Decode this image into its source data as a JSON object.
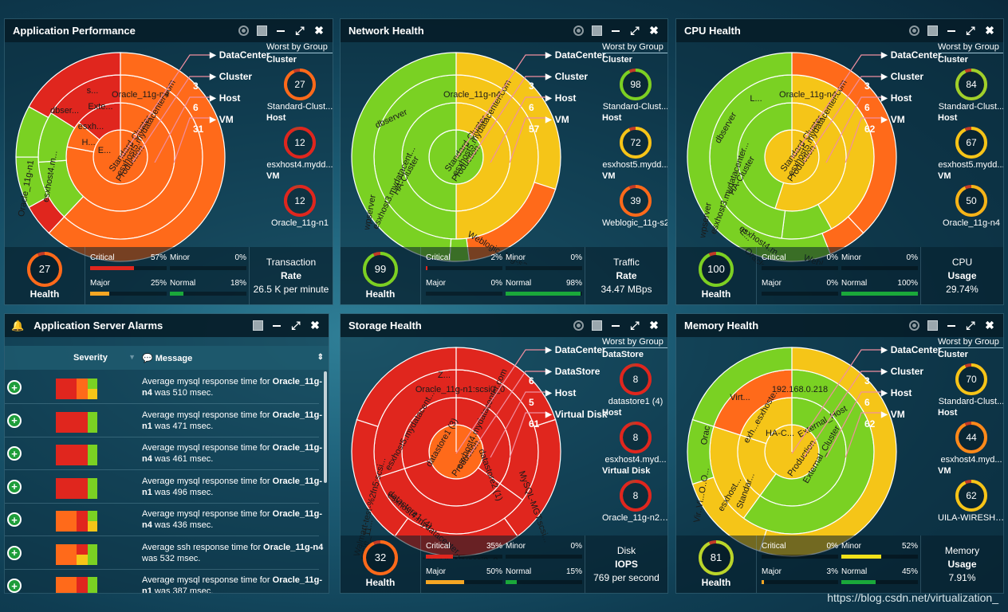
{
  "panels": {
    "app": {
      "title": "Application Performance",
      "levels": [
        "DataCenter",
        "Cluster",
        "Host",
        "VM"
      ],
      "counts": [
        "3",
        "6",
        "31"
      ],
      "worst_header": "Worst by Group",
      "worst": [
        {
          "group": "Cluster",
          "value": "27",
          "name": "Standard-Clust...",
          "color": "#ff6a1a"
        },
        {
          "group": "Host",
          "value": "12",
          "name": "esxhost4.mydd...",
          "color": "#e0261e"
        },
        {
          "group": "VM",
          "value": "12",
          "name": "Oracle_11g-n1",
          "color": "#e0261e"
        }
      ],
      "sun_labels": {
        "root": "Production",
        "ring1": "Standard-Cluster",
        "ring2a": "esxhost5.mydatacenter.com",
        "ring2b": "esxhost4.m...",
        "ring3a": "Oracle_11g-n4",
        "ring3b": "Oracle_11g-n1",
        "small1": "dbser...",
        "small2": "Exte...",
        "small3": "esxh...",
        "small4": "s...",
        "small5": "H...",
        "small6": "E..."
      },
      "health": {
        "value": "27",
        "label": "Health",
        "color": "#ff6a1a"
      },
      "severity": [
        {
          "label": "Critical",
          "pct": "57%",
          "fill": 0.57,
          "color": "#e0261e"
        },
        {
          "label": "Minor",
          "pct": "0%",
          "fill": 0,
          "color": "#f2e21a"
        },
        {
          "label": "Major",
          "pct": "25%",
          "fill": 0.25,
          "color": "#f5a623"
        },
        {
          "label": "Normal",
          "pct": "18%",
          "fill": 0.18,
          "color": "#1aa83a"
        }
      ],
      "metric": {
        "line1": "Transaction",
        "line2": "Rate",
        "line3": "26.5 K per minute"
      }
    },
    "net": {
      "title": "Network Health",
      "levels": [
        "DataCenter",
        "Cluster",
        "Host",
        "VM"
      ],
      "counts": [
        "3",
        "6",
        "57"
      ],
      "worst_header": "Worst by Group",
      "worst": [
        {
          "group": "Cluster",
          "value": "98",
          "name": "Standard-Clust...",
          "color": "#7ad123"
        },
        {
          "group": "Host",
          "value": "72",
          "name": "esxhost5.mydd...",
          "color": "#f5c518"
        },
        {
          "group": "VM",
          "value": "39",
          "name": "Weblogic_11g-s2",
          "color": "#ff6a1a"
        }
      ],
      "sun_labels": {
        "root": "Production",
        "ring1": "Standard-Cluster",
        "ring1b": "HA-Cluster",
        "ring2a": "esxhost5.mydatacenter.com",
        "ring2b": "esxhost3.mydatacent...",
        "ring3a": "Oracle_11g-n4",
        "ring3b": "dbserver",
        "ring3c": "wpserver",
        "ring3d": "Weblogic_11g-s2"
      },
      "health": {
        "value": "99",
        "label": "Health",
        "color": "#7ad123"
      },
      "severity": [
        {
          "label": "Critical",
          "pct": "2%",
          "fill": 0.02,
          "color": "#e0261e"
        },
        {
          "label": "Minor",
          "pct": "0%",
          "fill": 0,
          "color": "#f2e21a"
        },
        {
          "label": "Major",
          "pct": "0%",
          "fill": 0,
          "color": "#f5a623"
        },
        {
          "label": "Normal",
          "pct": "98%",
          "fill": 0.98,
          "color": "#1aa83a"
        }
      ],
      "metric": {
        "line1": "Traffic",
        "line2": "Rate",
        "line3": "34.47 MBps"
      }
    },
    "cpu": {
      "title": "CPU Health",
      "levels": [
        "DataCenter",
        "Cluster",
        "Host",
        "VM"
      ],
      "counts": [
        "3",
        "6",
        "62"
      ],
      "worst_header": "Worst by Group",
      "worst": [
        {
          "group": "Cluster",
          "value": "84",
          "name": "Standard-Clust...",
          "color": "#9fd12a"
        },
        {
          "group": "Host",
          "value": "67",
          "name": "esxhost5.mydd...",
          "color": "#f5c518"
        },
        {
          "group": "VM",
          "value": "50",
          "name": "Oracle_11g-n4",
          "color": "#f5b518"
        }
      ],
      "sun_labels": {
        "root": "Production",
        "ring1": "Standard-Cluster",
        "ring1b": "HA-Cluster",
        "ring2a": "esxhost5.mydatacenter.com",
        "ring2b": "esxhost3.mydatacenter...",
        "ring2c": "esxhost4.m...",
        "ring3a": "Oracle_11g-n4",
        "ring3b": "dbserver",
        "ring3c": "wpserver",
        "ring3d": "Webl...",
        "ring3e": "Oracle...",
        "ring3f": "E...",
        "ring3g": "L..."
      },
      "health": {
        "value": "100",
        "label": "Health",
        "color": "#7ad123"
      },
      "severity": [
        {
          "label": "Critical",
          "pct": "0%",
          "fill": 0,
          "color": "#e0261e"
        },
        {
          "label": "Minor",
          "pct": "0%",
          "fill": 0,
          "color": "#f2e21a"
        },
        {
          "label": "Major",
          "pct": "0%",
          "fill": 0,
          "color": "#f5a623"
        },
        {
          "label": "Normal",
          "pct": "100%",
          "fill": 1,
          "color": "#1aa83a"
        }
      ],
      "metric": {
        "line1": "CPU",
        "line2": "Usage",
        "line3": "29.74%"
      }
    },
    "storage": {
      "title": "Storage Health",
      "levels": [
        "DataCenter",
        "DataStore",
        "Host",
        "Virtual Disk"
      ],
      "counts": [
        "6",
        "5",
        "61"
      ],
      "worst_header": "Worst by Group",
      "worst": [
        {
          "group": "DataStore",
          "value": "8",
          "name": "datastore1 (4)",
          "color": "#e0261e"
        },
        {
          "group": "Host",
          "value": "8",
          "name": "esxhost4.myd...",
          "color": "#e0261e"
        },
        {
          "group": "Virtual Disk",
          "value": "8",
          "name": "Oracle_11g-n2:...",
          "color": "#e0261e"
        }
      ],
      "sun_labels": {
        "root": "Production",
        "ring1a": "datastore1 (3)",
        "ring1b": "datastore1 (4)",
        "ring1c": "datastore2 (1)",
        "ring2a": "esxhost5.mydatacent...",
        "ring2b": "esxhost4.mydatacenter.com",
        "ring2c": "esxhost4.mydatacenter...",
        "ring3a": "Oracle_11g-n1:scsi0_0",
        "ring3b": "Walmart-test-%2fn5:scsi...",
        "ring3c": "MySQL-MGT:scsi...",
        "ring3d": "MySQL-N1:scsi0_0",
        "ring3e": "Oracle_11...",
        "ring3f": "Z..."
      },
      "health": {
        "value": "32",
        "label": "Health",
        "color": "#ff6a1a"
      },
      "severity": [
        {
          "label": "Critical",
          "pct": "35%",
          "fill": 0.35,
          "color": "#e0261e"
        },
        {
          "label": "Minor",
          "pct": "0%",
          "fill": 0,
          "color": "#f2e21a"
        },
        {
          "label": "Major",
          "pct": "50%",
          "fill": 0.5,
          "color": "#f5a623"
        },
        {
          "label": "Normal",
          "pct": "15%",
          "fill": 0.15,
          "color": "#1aa83a"
        }
      ],
      "metric": {
        "line1": "Disk",
        "line2": "IOPS",
        "line3": "769 per second"
      }
    },
    "mem": {
      "title": "Memory Health",
      "levels": [
        "DataCenter",
        "Cluster",
        "Host",
        "VM"
      ],
      "counts": [
        "3",
        "6",
        "62"
      ],
      "worst_header": "Worst by Group",
      "worst": [
        {
          "group": "Cluster",
          "value": "70",
          "name": "Standard-Clust...",
          "color": "#f5c518"
        },
        {
          "group": "Host",
          "value": "44",
          "name": "esxhost4.myd...",
          "color": "#ff8a1a"
        },
        {
          "group": "VM",
          "value": "62",
          "name": "UILA-WIRESHA...",
          "color": "#f5c518"
        }
      ],
      "sun_labels": {
        "root": "Production",
        "ring1a": "External_Cluster",
        "ring1b": "HA-C...",
        "ring1c": "Standar...",
        "ring2a": "External_Host",
        "ring2b": "exh...esxhoste...",
        "ring2c": "esxhost...",
        "ring3a": "192.168.0.218",
        "ring3b": "Virt...",
        "ring3c": "Orac",
        "ring3d": "Vir..Vi...O..O..."
      },
      "health": {
        "value": "81",
        "label": "Health",
        "color": "#b8d62a"
      },
      "severity": [
        {
          "label": "Critical",
          "pct": "0%",
          "fill": 0,
          "color": "#e0261e"
        },
        {
          "label": "Minor",
          "pct": "52%",
          "fill": 0.52,
          "color": "#f2e21a"
        },
        {
          "label": "Major",
          "pct": "3%",
          "fill": 0.03,
          "color": "#f5a623"
        },
        {
          "label": "Normal",
          "pct": "45%",
          "fill": 0.45,
          "color": "#1aa83a"
        }
      ],
      "metric": {
        "line1": "Memory",
        "line2": "Usage",
        "line3": "7.91%"
      }
    }
  },
  "alarms": {
    "title": "Application Server Alarms",
    "col_severity": "Severity",
    "col_message": "Message",
    "rows": [
      {
        "pre": "Average mysql response time for ",
        "bold": "Oracle_11g-n4",
        "post": " was 510 msec.",
        "pattern": [
          "#e0261e",
          "#ff6a1a",
          "#7ad123",
          "#e0261e",
          "#ff6a1a",
          "#f5c518"
        ]
      },
      {
        "pre": "Average mysql response time for ",
        "bold": "Oracle_11g-n1",
        "post": " was 471 msec.",
        "pattern": [
          "#e0261e",
          "#e0261e",
          "#7ad123",
          "#e0261e",
          "#e0261e",
          "#7ad123"
        ]
      },
      {
        "pre": "Average mysql response time for ",
        "bold": "Oracle_11g-n4",
        "post": " was 461 msec.",
        "pattern": [
          "#e0261e",
          "#e0261e",
          "#7ad123",
          "#e0261e",
          "#e0261e",
          "#7ad123"
        ]
      },
      {
        "pre": "Average mysql response time for ",
        "bold": "Oracle_11g-n1",
        "post": " was 496 msec.",
        "pattern": [
          "#e0261e",
          "#e0261e",
          "#7ad123",
          "#e0261e",
          "#e0261e",
          "#7ad123"
        ]
      },
      {
        "pre": "Average mysql response time for ",
        "bold": "Oracle_11g-n4",
        "post": " was 436 msec.",
        "pattern": [
          "#ff6a1a",
          "#e0261e",
          "#7ad123",
          "#ff6a1a",
          "#e0261e",
          "#f5c518"
        ]
      },
      {
        "pre": "Average ssh response time for ",
        "bold": "Oracle_11g-n4",
        "post": " was 532 msec.",
        "pattern": [
          "#ff6a1a",
          "#e0261e",
          "#7ad123",
          "#ff6a1a",
          "#f5c518",
          "#7ad123"
        ]
      },
      {
        "pre": "Average mysql response time for ",
        "bold": "Oracle_11g-n1",
        "post": " was 387 msec.",
        "pattern": [
          "#ff6a1a",
          "#e0261e",
          "#7ad123",
          "#ff6a1a",
          "#e0261e",
          "#7ad123"
        ]
      }
    ]
  },
  "watermark": "https://blog.csdn.net/virtualization_"
}
